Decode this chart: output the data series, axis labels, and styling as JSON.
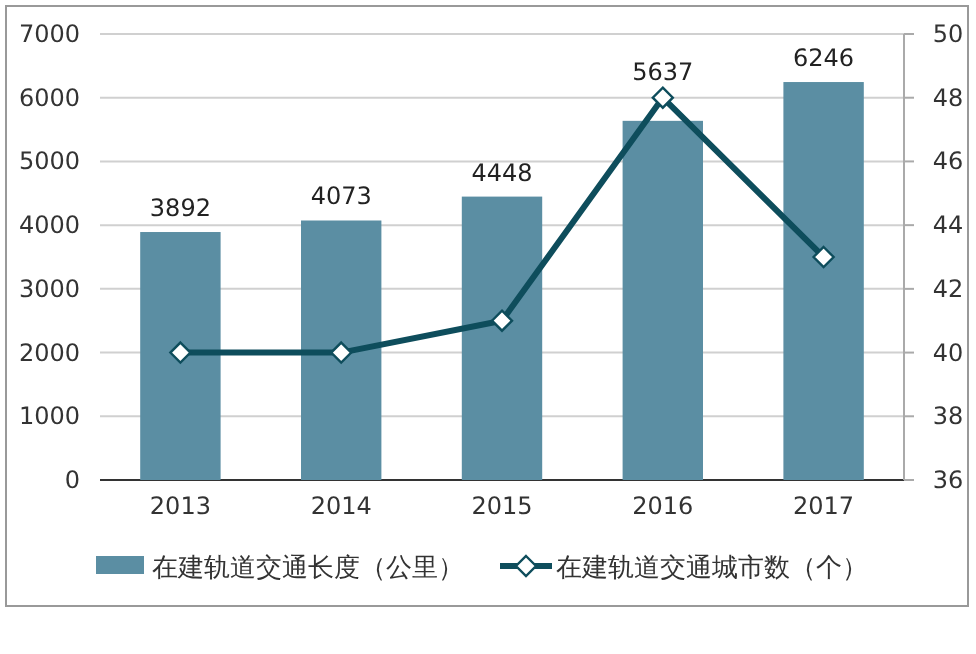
{
  "chart_data": {
    "type": "bar",
    "categories": [
      "2013",
      "2014",
      "2015",
      "2016",
      "2017"
    ],
    "series": [
      {
        "name": "在建轨道交通长度（公里）",
        "color": "#5b8ea3",
        "values": [
          3892,
          4073,
          4448,
          5637,
          6246
        ],
        "value_labels": [
          "3892",
          "4073",
          "4448",
          "5637",
          "6246"
        ]
      },
      {
        "name": "在建轨道交通城市数（个）",
        "type": "line",
        "axis": "y2",
        "color": "#0e4d5c",
        "marker": "diamond",
        "values": [
          40,
          40,
          41,
          48,
          43
        ]
      }
    ],
    "ylim": [
      0,
      7000
    ],
    "yticks": [
      0,
      1000,
      2000,
      3000,
      4000,
      5000,
      6000,
      7000
    ],
    "y2lim": [
      36,
      50
    ],
    "y2ticks": [
      36,
      38,
      40,
      42,
      44,
      46,
      48,
      50
    ],
    "grid": "y",
    "legend": "bottom"
  }
}
